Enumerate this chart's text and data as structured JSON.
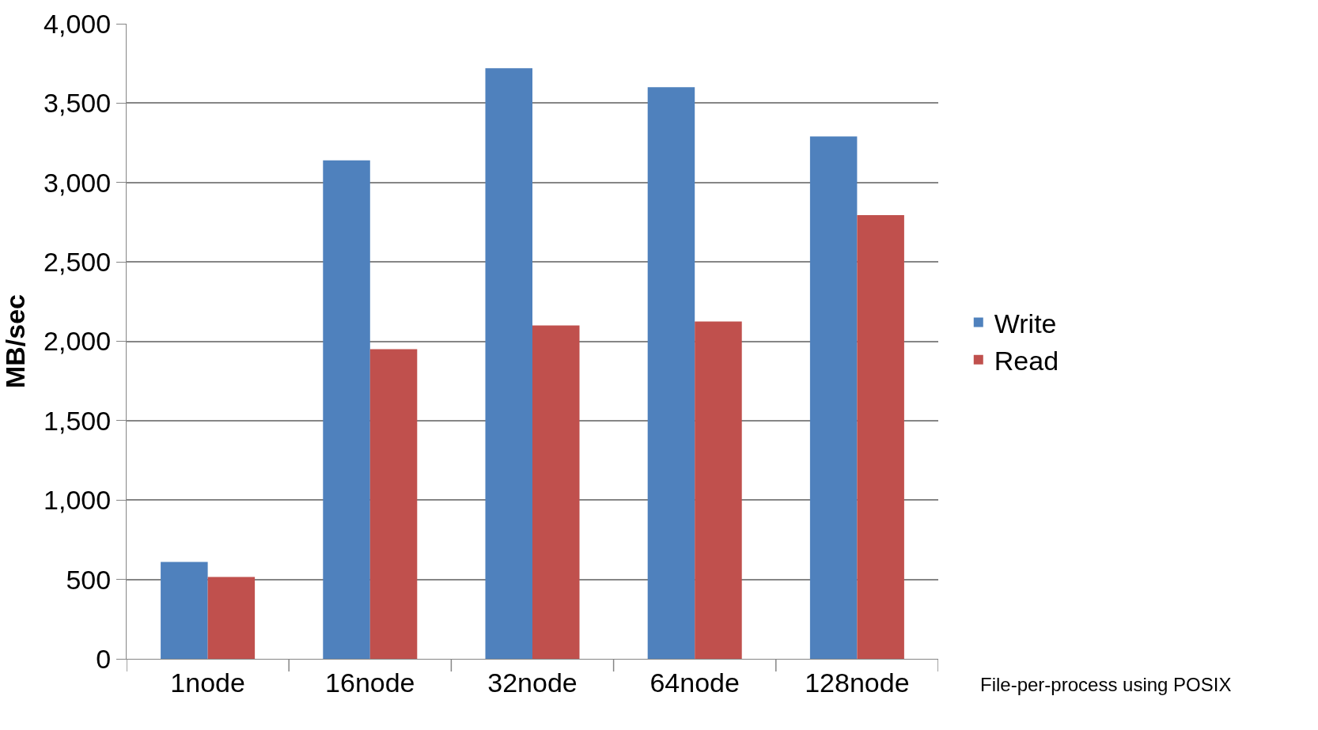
{
  "chart_data": {
    "type": "bar",
    "ylabel": "MB/sec",
    "categories": [
      "1node",
      "16node",
      "32node",
      "64node",
      "128node"
    ],
    "series": [
      {
        "name": "Write",
        "color": "#4f81bd",
        "values": [
          610,
          3140,
          3720,
          3600,
          3290
        ]
      },
      {
        "name": "Read",
        "color": "#c0504d",
        "values": [
          515,
          1950,
          2100,
          2125,
          2795
        ]
      }
    ],
    "ylim": [
      0,
      4000
    ],
    "yticks": [
      {
        "value": 0,
        "label": "0"
      },
      {
        "value": 500,
        "label": "500"
      },
      {
        "value": 1000,
        "label": "1,000"
      },
      {
        "value": 1500,
        "label": "1,500"
      },
      {
        "value": 2000,
        "label": "2,000"
      },
      {
        "value": 2500,
        "label": "2,500"
      },
      {
        "value": 3000,
        "label": "3,000"
      },
      {
        "value": 3500,
        "label": "3,500"
      },
      {
        "value": 4000,
        "label": "4,000"
      }
    ],
    "grid": "y",
    "legend": "right",
    "annotations": [
      "File-per-process using POSIX"
    ]
  }
}
